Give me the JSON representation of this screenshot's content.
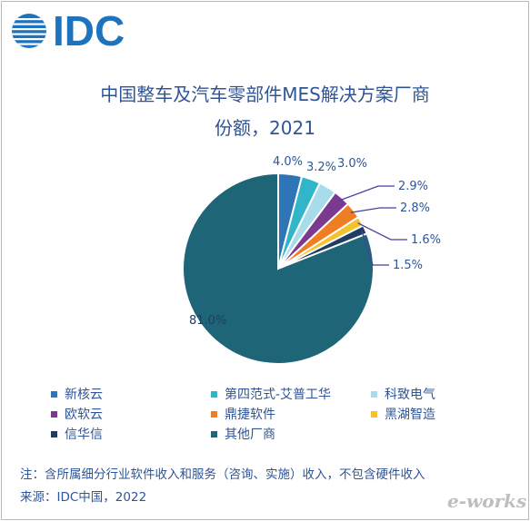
{
  "logo": {
    "text": "IDC"
  },
  "title_line1": "中国整车及汽车零部件MES解决方案厂商",
  "title_line2": "份额，2021",
  "note": "注：含所属细分行业软件收入和服务（咨询、实施）收入，不包含硬件收入",
  "source": "来源：IDC中国，2022",
  "watermark": "e-works",
  "chart_data": {
    "type": "pie",
    "title": "中国整车及汽车零部件MES解决方案厂商份额，2021",
    "slices": [
      {
        "name": "新核云",
        "value": 4.0,
        "label": "4.0%",
        "color": "#2e75b6"
      },
      {
        "name": "第四范式-艾普工华",
        "value": 3.2,
        "label": "3.2%",
        "color": "#31b6c9"
      },
      {
        "name": "科致电气",
        "value": 3.0,
        "label": "3.0%",
        "color": "#a9dcea"
      },
      {
        "name": "欧软云",
        "value": 2.9,
        "label": "2.9%",
        "color": "#7b3a8f"
      },
      {
        "name": "鼎捷软件",
        "value": 2.8,
        "label": "2.8%",
        "color": "#ef7d22"
      },
      {
        "name": "黑湖智造",
        "value": 1.6,
        "label": "1.6%",
        "color": "#f5c12e"
      },
      {
        "name": "信华信",
        "value": 1.5,
        "label": "1.5%",
        "color": "#1f3d63"
      },
      {
        "name": "其他厂商",
        "value": 81.0,
        "label": "81.0%",
        "color": "#1e6577"
      }
    ],
    "leader_color": "#4a3fa0",
    "label_color": "#2f5597",
    "legend_placement": "bottom"
  }
}
